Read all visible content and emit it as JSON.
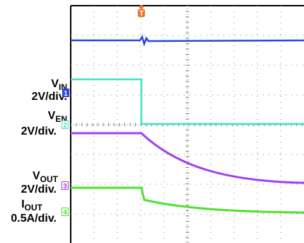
{
  "trigger": "T",
  "channels": [
    {
      "main": "V",
      "sub": "IN",
      "scale": "2V/div.",
      "marker": "1"
    },
    {
      "main": "V",
      "sub": "EN",
      "scale": "2V/div.",
      "marker": "2"
    },
    {
      "main": "V",
      "sub": "OUT",
      "scale": "2V/div.",
      "marker": "3"
    },
    {
      "main": "I",
      "sub": "OUT",
      "scale": "0.5A/div.",
      "marker": "4"
    }
  ]
}
